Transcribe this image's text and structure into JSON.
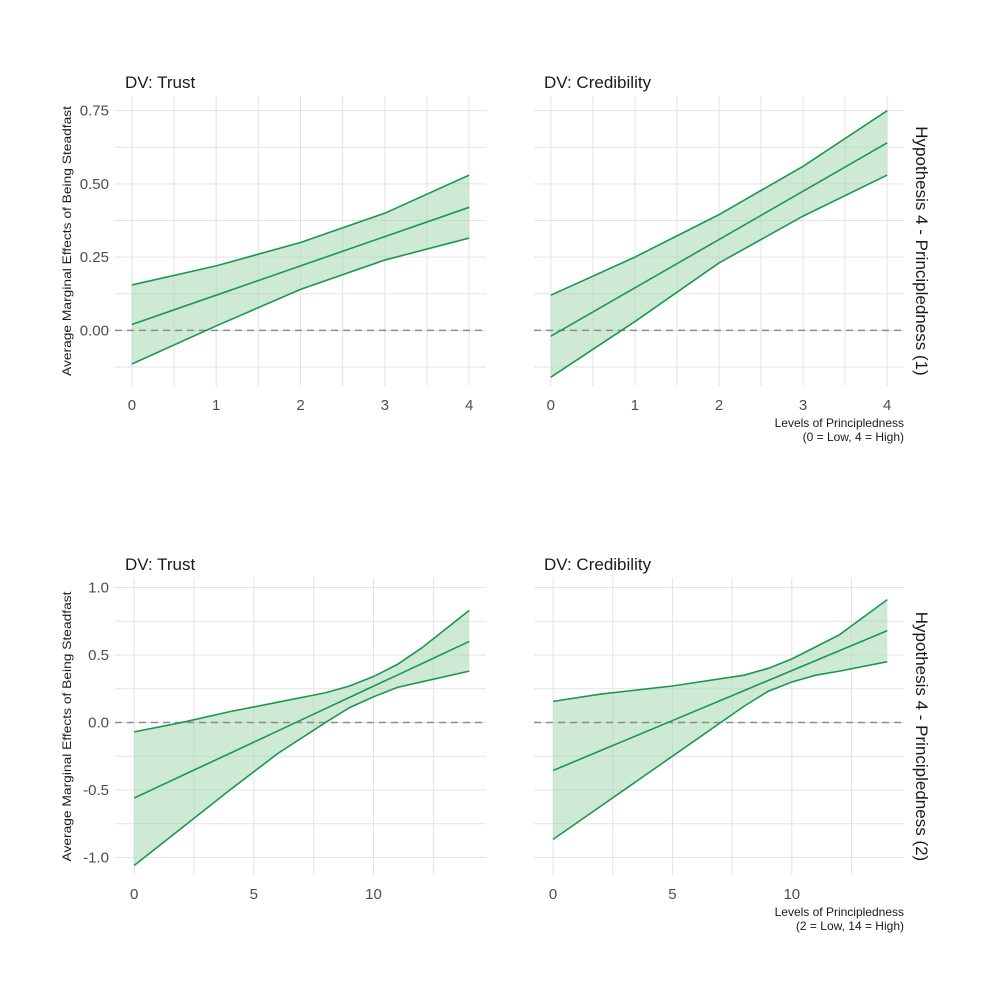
{
  "chart_data": [
    {
      "type": "line",
      "title": "DV: Trust",
      "ylabel": "Average Marginal Effects of Being Steadfast",
      "xlabel": "",
      "row_label": "Hypothesis 4 - Principledness (1)",
      "x": [
        0,
        1,
        2,
        3,
        4
      ],
      "xticks": [
        0,
        1,
        2,
        3,
        4
      ],
      "yticks": [
        0.0,
        0.25,
        0.5,
        0.75
      ],
      "ytick_labels": [
        "0.00",
        "0.25",
        "0.50",
        "0.75"
      ],
      "xlim": [
        -0.2,
        4.2
      ],
      "ylim": [
        -0.19,
        0.8
      ],
      "series": [
        {
          "role": "estimate",
          "values": [
            0.02,
            0.12,
            0.22,
            0.32,
            0.42
          ]
        },
        {
          "role": "upper",
          "values": [
            0.155,
            0.22,
            0.3,
            0.4,
            0.53
          ]
        },
        {
          "role": "lower",
          "values": [
            -0.115,
            0.015,
            0.14,
            0.24,
            0.315
          ]
        }
      ],
      "reference_line": 0,
      "grid": true
    },
    {
      "type": "line",
      "title": "DV: Credibility",
      "ylabel": "",
      "xlabel": "Levels of Principledness",
      "xlabel2": "(0 = Low, 4 = High)",
      "row_label": "Hypothesis 4 - Principledness (1)",
      "x": [
        0,
        1,
        2,
        3,
        4
      ],
      "xticks": [
        0,
        1,
        2,
        3,
        4
      ],
      "yticks": [
        0.0,
        0.25,
        0.5,
        0.75
      ],
      "ytick_labels": [],
      "xlim": [
        -0.2,
        4.2
      ],
      "ylim": [
        -0.19,
        0.8
      ],
      "series": [
        {
          "role": "estimate",
          "values": [
            -0.02,
            0.145,
            0.31,
            0.475,
            0.64
          ]
        },
        {
          "role": "upper",
          "values": [
            0.12,
            0.25,
            0.395,
            0.56,
            0.75
          ]
        },
        {
          "role": "lower",
          "values": [
            -0.16,
            0.03,
            0.23,
            0.39,
            0.53
          ]
        }
      ],
      "reference_line": 0,
      "grid": true
    },
    {
      "type": "line",
      "title": "DV: Trust",
      "ylabel": "Average Marginal Effects of Being Steadfast",
      "xlabel": "",
      "row_label": "Hypothesis 4 - Principledness (2)",
      "x": [
        0,
        2,
        4,
        6,
        8,
        9,
        10,
        11,
        12,
        14
      ],
      "xticks": [
        0,
        5,
        10
      ],
      "yticks": [
        -1.0,
        -0.5,
        0.0,
        0.5,
        1.0
      ],
      "ytick_labels": [
        "-1.0",
        "-0.5",
        "0.0",
        "0.5",
        "1.0"
      ],
      "xlim": [
        -0.8,
        14.7
      ],
      "ylim": [
        -1.13,
        1.07
      ],
      "series": [
        {
          "role": "estimate",
          "values": [
            -0.56,
            -0.394,
            -0.229,
            -0.063,
            0.103,
            0.186,
            0.269,
            0.351,
            0.434,
            0.6
          ]
        },
        {
          "role": "upper",
          "values": [
            -0.07,
            0.0,
            0.08,
            0.15,
            0.22,
            0.27,
            0.34,
            0.43,
            0.55,
            0.83
          ]
        },
        {
          "role": "lower",
          "values": [
            -1.06,
            -0.78,
            -0.5,
            -0.23,
            0.0,
            0.11,
            0.19,
            0.26,
            0.3,
            0.38
          ]
        }
      ],
      "reference_line": 0,
      "grid": true
    },
    {
      "type": "line",
      "title": "DV: Credibility",
      "ylabel": "",
      "xlabel": "Levels of Principledness",
      "xlabel2": "(2 = Low, 14 = High)",
      "row_label": "Hypothesis 4 - Principledness (2)",
      "x": [
        0,
        2,
        5,
        8,
        9,
        10,
        11,
        12,
        14
      ],
      "xticks": [
        0,
        5,
        10
      ],
      "yticks": [
        -1.0,
        -0.5,
        0.0,
        0.5,
        1.0
      ],
      "ytick_labels": [],
      "xlim": [
        -0.8,
        14.7
      ],
      "ylim": [
        -1.13,
        1.07
      ],
      "series": [
        {
          "role": "estimate",
          "values": [
            -0.356,
            -0.208,
            0.014,
            0.236,
            0.31,
            0.384,
            0.458,
            0.532,
            0.68
          ]
        },
        {
          "role": "upper",
          "values": [
            0.156,
            0.21,
            0.27,
            0.35,
            0.4,
            0.47,
            0.56,
            0.65,
            0.91
          ]
        },
        {
          "role": "lower",
          "values": [
            -0.866,
            -0.62,
            -0.25,
            0.12,
            0.23,
            0.3,
            0.35,
            0.38,
            0.45
          ]
        }
      ],
      "reference_line": 0,
      "grid": true
    }
  ],
  "colors": {
    "line": "#1a9850",
    "ribbon": "#a6d9b1",
    "grid": "#e3e3e3",
    "reference": "#8c8c8c"
  }
}
